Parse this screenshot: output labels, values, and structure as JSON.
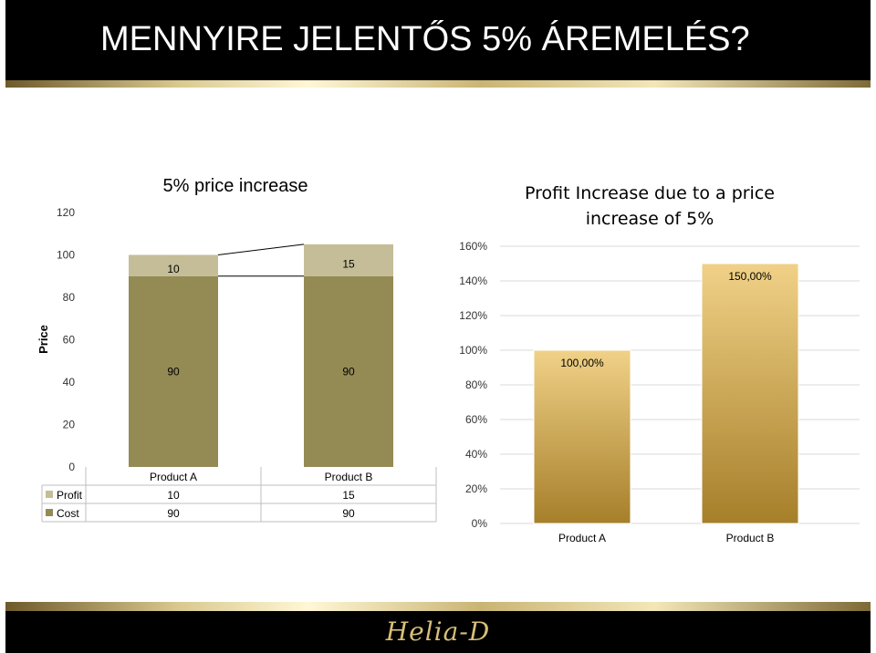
{
  "slide": {
    "title": "MENNYIRE JELENTŐS 5% ÁREMELÉS?",
    "logo": "Helia-D",
    "accent_color": "#000000",
    "gold_color": "#c9a84c"
  },
  "chart_data": [
    {
      "type": "bar",
      "stacked": true,
      "title": "5% price increase",
      "xlabel": "",
      "ylabel": "Price",
      "ylim": [
        0,
        120
      ],
      "y_ticks": [
        "0",
        "20",
        "40",
        "60",
        "80",
        "100",
        "120"
      ],
      "categories": [
        "Product A",
        "Product B"
      ],
      "series": [
        {
          "name": "Cost",
          "values": [
            90,
            90
          ],
          "labels": [
            "90",
            "90"
          ],
          "color": "#948a54"
        },
        {
          "name": "Profit",
          "values": [
            10,
            15
          ],
          "labels": [
            "10",
            "15"
          ],
          "color": "#c4bd97"
        }
      ],
      "data_table": true,
      "grid": false
    },
    {
      "type": "bar",
      "title": "Profit Increase due to a price increase of 5%",
      "xlabel": "",
      "ylabel": "",
      "ylim": [
        0,
        160
      ],
      "y_ticks": [
        "0%",
        "20%",
        "40%",
        "60%",
        "80%",
        "100%",
        "120%",
        "140%",
        "160%"
      ],
      "categories": [
        "Product A",
        "Product B"
      ],
      "values": [
        100,
        150
      ],
      "labels": [
        "100,00%",
        "150,00%"
      ],
      "color_top": "#f0d187",
      "color_bottom": "#a67f2a",
      "grid": true
    }
  ]
}
